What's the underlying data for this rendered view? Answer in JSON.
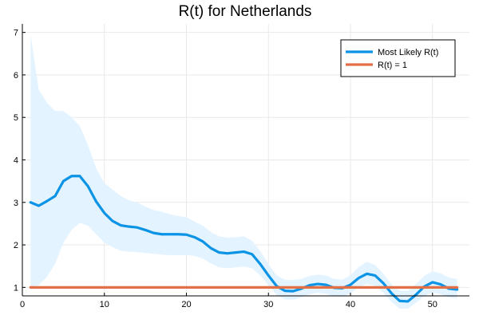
{
  "chart_data": {
    "type": "line",
    "title": "R(t) for Netherlands",
    "xlabel": "",
    "ylabel": "",
    "xlim": [
      0,
      54.5
    ],
    "ylim": [
      0.8,
      7.2
    ],
    "x_ticks": [
      0,
      10,
      20,
      30,
      40,
      50
    ],
    "y_ticks": [
      1,
      2,
      3,
      4,
      5,
      6,
      7
    ],
    "grid": true,
    "legend_position": "top-right",
    "x": [
      1,
      2,
      3,
      4,
      5,
      6,
      7,
      8,
      9,
      10,
      11,
      12,
      13,
      14,
      15,
      16,
      17,
      18,
      19,
      20,
      21,
      22,
      23,
      24,
      25,
      26,
      27,
      28,
      29,
      30,
      31,
      32,
      33,
      34,
      35,
      36,
      37,
      38,
      39,
      40,
      41,
      42,
      43,
      44,
      45,
      46,
      47,
      48,
      49,
      50,
      51,
      52,
      53
    ],
    "series": [
      {
        "name": "Most Likely R(t)",
        "color": "#0b93e6",
        "values": [
          3.0,
          2.92,
          3.03,
          3.15,
          3.5,
          3.62,
          3.62,
          3.38,
          3.02,
          2.75,
          2.56,
          2.46,
          2.43,
          2.41,
          2.35,
          2.28,
          2.25,
          2.25,
          2.25,
          2.24,
          2.18,
          2.08,
          1.92,
          1.82,
          1.8,
          1.82,
          1.84,
          1.78,
          1.55,
          1.28,
          1.03,
          0.92,
          0.91,
          0.97,
          1.05,
          1.08,
          1.06,
          0.99,
          0.98,
          1.06,
          1.22,
          1.32,
          1.28,
          1.1,
          0.86,
          0.68,
          0.67,
          0.83,
          1.02,
          1.12,
          1.07,
          0.97,
          0.95
        ]
      },
      {
        "name": "R(t) = 1",
        "color": "#e26f46",
        "values": [
          1,
          1,
          1,
          1,
          1,
          1,
          1,
          1,
          1,
          1,
          1,
          1,
          1,
          1,
          1,
          1,
          1,
          1,
          1,
          1,
          1,
          1,
          1,
          1,
          1,
          1,
          1,
          1,
          1,
          1,
          1,
          1,
          1,
          1,
          1,
          1,
          1,
          1,
          1,
          1,
          1,
          1,
          1,
          1,
          1,
          1,
          1,
          1,
          1,
          1,
          1,
          1,
          1
        ]
      }
    ],
    "band": {
      "color": "#e3f3ff",
      "upper": [
        6.95,
        5.65,
        5.35,
        5.15,
        5.15,
        5.0,
        4.8,
        4.35,
        3.8,
        3.45,
        3.3,
        3.15,
        3.05,
        3.0,
        2.9,
        2.82,
        2.78,
        2.72,
        2.68,
        2.65,
        2.55,
        2.45,
        2.3,
        2.2,
        2.17,
        2.18,
        2.2,
        2.1,
        1.85,
        1.55,
        1.28,
        1.18,
        1.17,
        1.2,
        1.27,
        1.3,
        1.28,
        1.2,
        1.18,
        1.28,
        1.48,
        1.6,
        1.53,
        1.32,
        1.07,
        0.92,
        0.92,
        1.08,
        1.27,
        1.38,
        1.33,
        1.23,
        1.2
      ],
      "lower": [
        1.0,
        1.05,
        1.25,
        1.55,
        2.05,
        2.35,
        2.52,
        2.45,
        2.25,
        2.05,
        1.95,
        1.86,
        1.84,
        1.83,
        1.81,
        1.79,
        1.77,
        1.76,
        1.76,
        1.76,
        1.74,
        1.68,
        1.56,
        1.47,
        1.45,
        1.47,
        1.49,
        1.45,
        1.28,
        1.05,
        0.82,
        0.72,
        0.71,
        0.76,
        0.84,
        0.87,
        0.85,
        0.79,
        0.78,
        0.86,
        1.0,
        1.08,
        1.04,
        0.88,
        0.66,
        0.5,
        0.5,
        0.64,
        0.8,
        0.88,
        0.84,
        0.76,
        0.74
      ]
    }
  }
}
